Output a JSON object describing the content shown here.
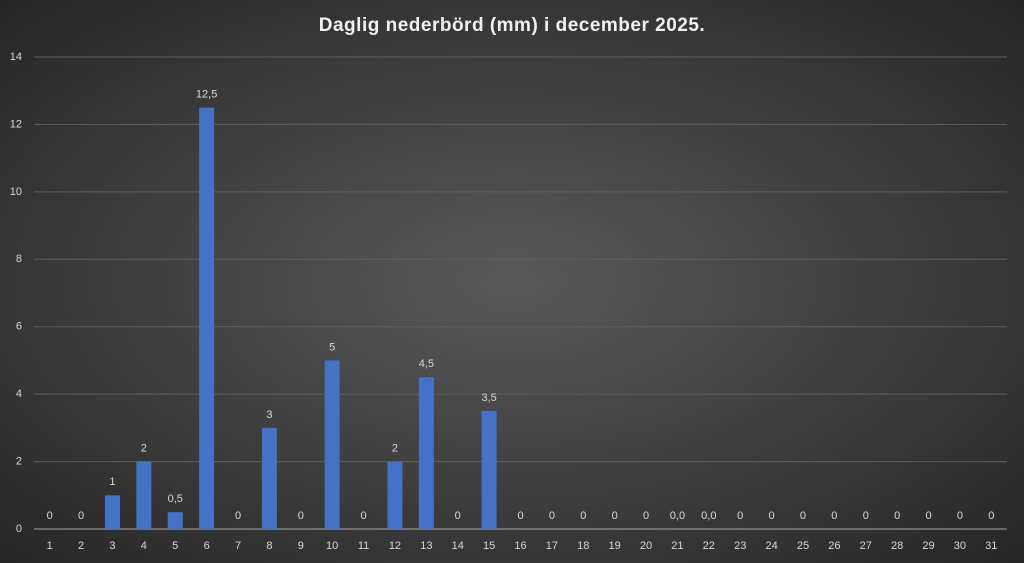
{
  "chart_data": {
    "type": "bar",
    "title": "Daglig nederbörd (mm) i december 2025.",
    "categories": [
      "1",
      "2",
      "3",
      "4",
      "5",
      "6",
      "7",
      "8",
      "9",
      "10",
      "11",
      "12",
      "13",
      "14",
      "15",
      "16",
      "17",
      "18",
      "19",
      "20",
      "21",
      "22",
      "23",
      "24",
      "25",
      "26",
      "27",
      "28",
      "29",
      "30",
      "31"
    ],
    "values": [
      0,
      0,
      1,
      2,
      0.5,
      12.5,
      0,
      3,
      0,
      5,
      0,
      2,
      4.5,
      0,
      3.5,
      0,
      0,
      0,
      0,
      0,
      0,
      0,
      0,
      0,
      0,
      0,
      0,
      0,
      0,
      0,
      0
    ],
    "value_labels": [
      "0",
      "0",
      "1",
      "2",
      "0,5",
      "12,5",
      "0",
      "3",
      "0",
      "5",
      "0",
      "2",
      "4,5",
      "0",
      "3,5",
      "0",
      "0",
      "0",
      "0",
      "0",
      "0,0",
      "0,0",
      "0",
      "0",
      "0",
      "0",
      "0",
      "0",
      "0",
      "0",
      "0"
    ],
    "color": "#4472c4",
    "ylim": [
      0,
      14
    ],
    "yticks": [
      0,
      2,
      4,
      6,
      8,
      10,
      12,
      14
    ],
    "grid": true
  }
}
